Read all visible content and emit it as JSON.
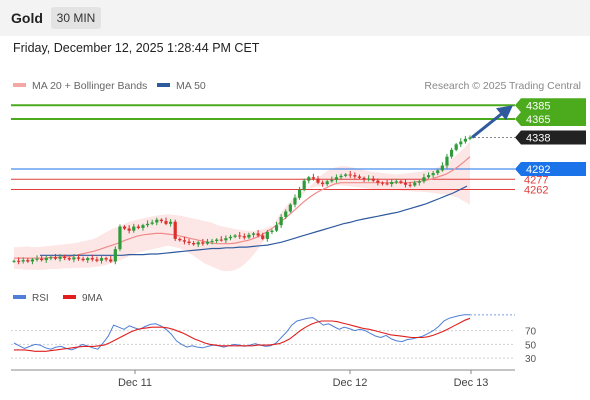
{
  "header": {
    "title": "Gold",
    "timeframe": "30 MIN"
  },
  "datetime": "Friday, December 12, 2025 1:28:44 PM CET",
  "legend": {
    "ma20_label": "MA 20 + Bollinger Bands",
    "ma50_label": "MA 50",
    "credit": "Research © 2025 Trading Central"
  },
  "rsi_legend": {
    "rsi_label": "RSI",
    "ma_label": "9MA"
  },
  "colors": {
    "resistance": "#4caa1d",
    "current": "#222222",
    "pivot": "#1a73e8",
    "support": "#e03c3c",
    "ma20_band": "#f4a7a7",
    "ma50": "#2f5a9e",
    "rsi": "#4f7fd6",
    "rsi_ma": "#e01e1e",
    "candle_up": "#2e9b3a",
    "candle_down": "#d9302c"
  },
  "chart_data": [
    {
      "type": "candlestick",
      "x_ticks": [
        "Dec 11",
        "Dec 12",
        "Dec 13"
      ],
      "ylim": [
        4130,
        4400
      ],
      "levels": [
        {
          "label": "4385",
          "value": 4385,
          "kind": "resistance"
        },
        {
          "label": "4365",
          "value": 4365,
          "kind": "resistance"
        },
        {
          "label": "4338",
          "value": 4338,
          "kind": "current"
        },
        {
          "label": "4292",
          "value": 4292,
          "kind": "pivot"
        },
        {
          "label": "4277",
          "value": 4277,
          "kind": "support"
        },
        {
          "label": "4262",
          "value": 4262,
          "kind": "support"
        }
      ],
      "close": [
        4158,
        4157,
        4159,
        4157,
        4160,
        4161,
        4159,
        4162,
        4163,
        4161,
        4164,
        4162,
        4160,
        4163,
        4161,
        4159,
        4162,
        4160,
        4158,
        4162,
        4160,
        4157,
        4175,
        4208,
        4205,
        4202,
        4208,
        4206,
        4210,
        4212,
        4214,
        4218,
        4216,
        4212,
        4215,
        4190,
        4188,
        4186,
        4184,
        4182,
        4185,
        4183,
        4186,
        4187,
        4189,
        4188,
        4191,
        4193,
        4195,
        4194,
        4192,
        4196,
        4198,
        4195,
        4190,
        4200,
        4202,
        4210,
        4222,
        4230,
        4240,
        4250,
        4262,
        4275,
        4280,
        4278,
        4272,
        4270,
        4274,
        4276,
        4280,
        4282,
        4284,
        4283,
        4281,
        4279,
        4277,
        4278,
        4275,
        4272,
        4271,
        4270,
        4273,
        4274,
        4272,
        4269,
        4268,
        4272,
        4274,
        4280,
        4283,
        4286,
        4290,
        4297,
        4310,
        4320,
        4328,
        4332,
        4336,
        4338
      ],
      "bollinger_upper": [
        4178,
        4178,
        4179,
        4178,
        4178,
        4179,
        4180,
        4181,
        4182,
        4183,
        4184,
        4186,
        4188,
        4190,
        4195,
        4200,
        4205,
        4208,
        4212,
        4216,
        4218,
        4220,
        4222,
        4224,
        4225,
        4226,
        4225,
        4224,
        4222,
        4220,
        4218,
        4216,
        4214,
        4210,
        4208,
        4206,
        4204,
        4203,
        4202,
        4202,
        4203,
        4206,
        4210,
        4216,
        4225,
        4236,
        4246,
        4256,
        4266,
        4276,
        4284,
        4290,
        4294,
        4296,
        4296,
        4294,
        4292,
        4290,
        4288,
        4287,
        4286,
        4285,
        4284,
        4285,
        4286,
        4287,
        4288,
        4290,
        4292,
        4295,
        4300,
        4306,
        4314,
        4322,
        4332
      ],
      "bollinger_lower": [
        4146,
        4146,
        4145,
        4145,
        4145,
        4145,
        4146,
        4146,
        4147,
        4147,
        4148,
        4148,
        4148,
        4149,
        4150,
        4152,
        4155,
        4158,
        4162,
        4166,
        4170,
        4172,
        4174,
        4176,
        4178,
        4180,
        4178,
        4176,
        4172,
        4166,
        4160,
        4154,
        4150,
        4146,
        4143,
        4143,
        4145,
        4150,
        4158,
        4168,
        4180,
        4194,
        4210,
        4224,
        4236,
        4246,
        4254,
        4260,
        4264,
        4266,
        4267,
        4268,
        4268,
        4268,
        4267,
        4266,
        4265,
        4264,
        4263,
        4262,
        4262,
        4261,
        4261,
        4260,
        4260,
        4259,
        4259,
        4258,
        4257,
        4256,
        4255,
        4253,
        4250,
        4245,
        4240
      ],
      "ma20": [
        4162,
        4162,
        4162,
        4162,
        4162,
        4162,
        4163,
        4163,
        4164,
        4164,
        4166,
        4168,
        4170,
        4172,
        4175,
        4178,
        4181,
        4184,
        4188,
        4191,
        4194,
        4196,
        4197,
        4198,
        4198,
        4197,
        4196,
        4194,
        4192,
        4190,
        4188,
        4186,
        4184,
        4183,
        4183,
        4183,
        4184,
        4186,
        4188,
        4191,
        4195,
        4200,
        4206,
        4213,
        4220,
        4228,
        4236,
        4244,
        4251,
        4257,
        4262,
        4266,
        4270,
        4272,
        4272,
        4272,
        4272,
        4272,
        4272,
        4272,
        4272,
        4272,
        4272,
        4272,
        4272,
        4273,
        4274,
        4276,
        4278,
        4281,
        4284,
        4289,
        4295,
        4302,
        4310
      ],
      "ma50": [
        4166,
        4166,
        4166,
        4166,
        4166,
        4166,
        4166,
        4166,
        4166,
        4166,
        4166,
        4166,
        4166,
        4167,
        4167,
        4167,
        4168,
        4168,
        4169,
        4170,
        4171,
        4172,
        4173,
        4174,
        4175,
        4176,
        4176,
        4177,
        4177,
        4178,
        4178,
        4179,
        4180,
        4181,
        4183,
        4185,
        4188,
        4191,
        4194,
        4197,
        4200,
        4203,
        4206,
        4209,
        4212,
        4214,
        4217,
        4219,
        4221,
        4223,
        4225,
        4227,
        4229,
        4232,
        4235,
        4238,
        4241,
        4245,
        4249,
        4253,
        4257,
        4262,
        4267
      ],
      "projection": {
        "from": 4338,
        "to": 4385
      }
    },
    {
      "type": "line",
      "series": [
        {
          "name": "RSI",
          "values": [
            52,
            48,
            44,
            47,
            50,
            49,
            45,
            43,
            46,
            47,
            44,
            42,
            45,
            50,
            48,
            45,
            43,
            52,
            62,
            78,
            75,
            72,
            77,
            74,
            72,
            76,
            79,
            80,
            77,
            72,
            65,
            55,
            50,
            46,
            48,
            46,
            45,
            47,
            49,
            48,
            46,
            48,
            50,
            49,
            47,
            49,
            51,
            49,
            47,
            48,
            52,
            60,
            68,
            78,
            84,
            86,
            88,
            89,
            84,
            78,
            80,
            76,
            72,
            75,
            73,
            70,
            72,
            70,
            66,
            62,
            60,
            63,
            58,
            55,
            54,
            57,
            58,
            60,
            62,
            66,
            70,
            76,
            84,
            88,
            90,
            92,
            93,
            93
          ]
        },
        {
          "name": "9MA",
          "values": [
            42,
            42,
            42,
            41,
            40,
            40,
            40,
            41,
            42,
            43,
            44,
            45,
            46,
            47,
            47,
            47,
            48,
            49,
            52,
            56,
            60,
            64,
            68,
            71,
            73,
            74,
            75,
            75,
            75,
            74,
            72,
            69,
            66,
            62,
            58,
            55,
            52,
            50,
            49,
            48,
            48,
            48,
            48,
            48,
            48,
            48,
            49,
            49,
            49,
            50,
            51,
            54,
            58,
            64,
            70,
            75,
            79,
            82,
            84,
            84,
            84,
            83,
            81,
            79,
            77,
            75,
            73,
            72,
            70,
            68,
            66,
            64,
            63,
            62,
            61,
            60,
            60,
            60,
            61,
            63,
            66,
            69,
            73,
            77,
            81,
            85,
            88
          ]
        }
      ],
      "y_ticks": [
        30,
        50,
        70
      ],
      "ylim": [
        20,
        100
      ]
    }
  ]
}
